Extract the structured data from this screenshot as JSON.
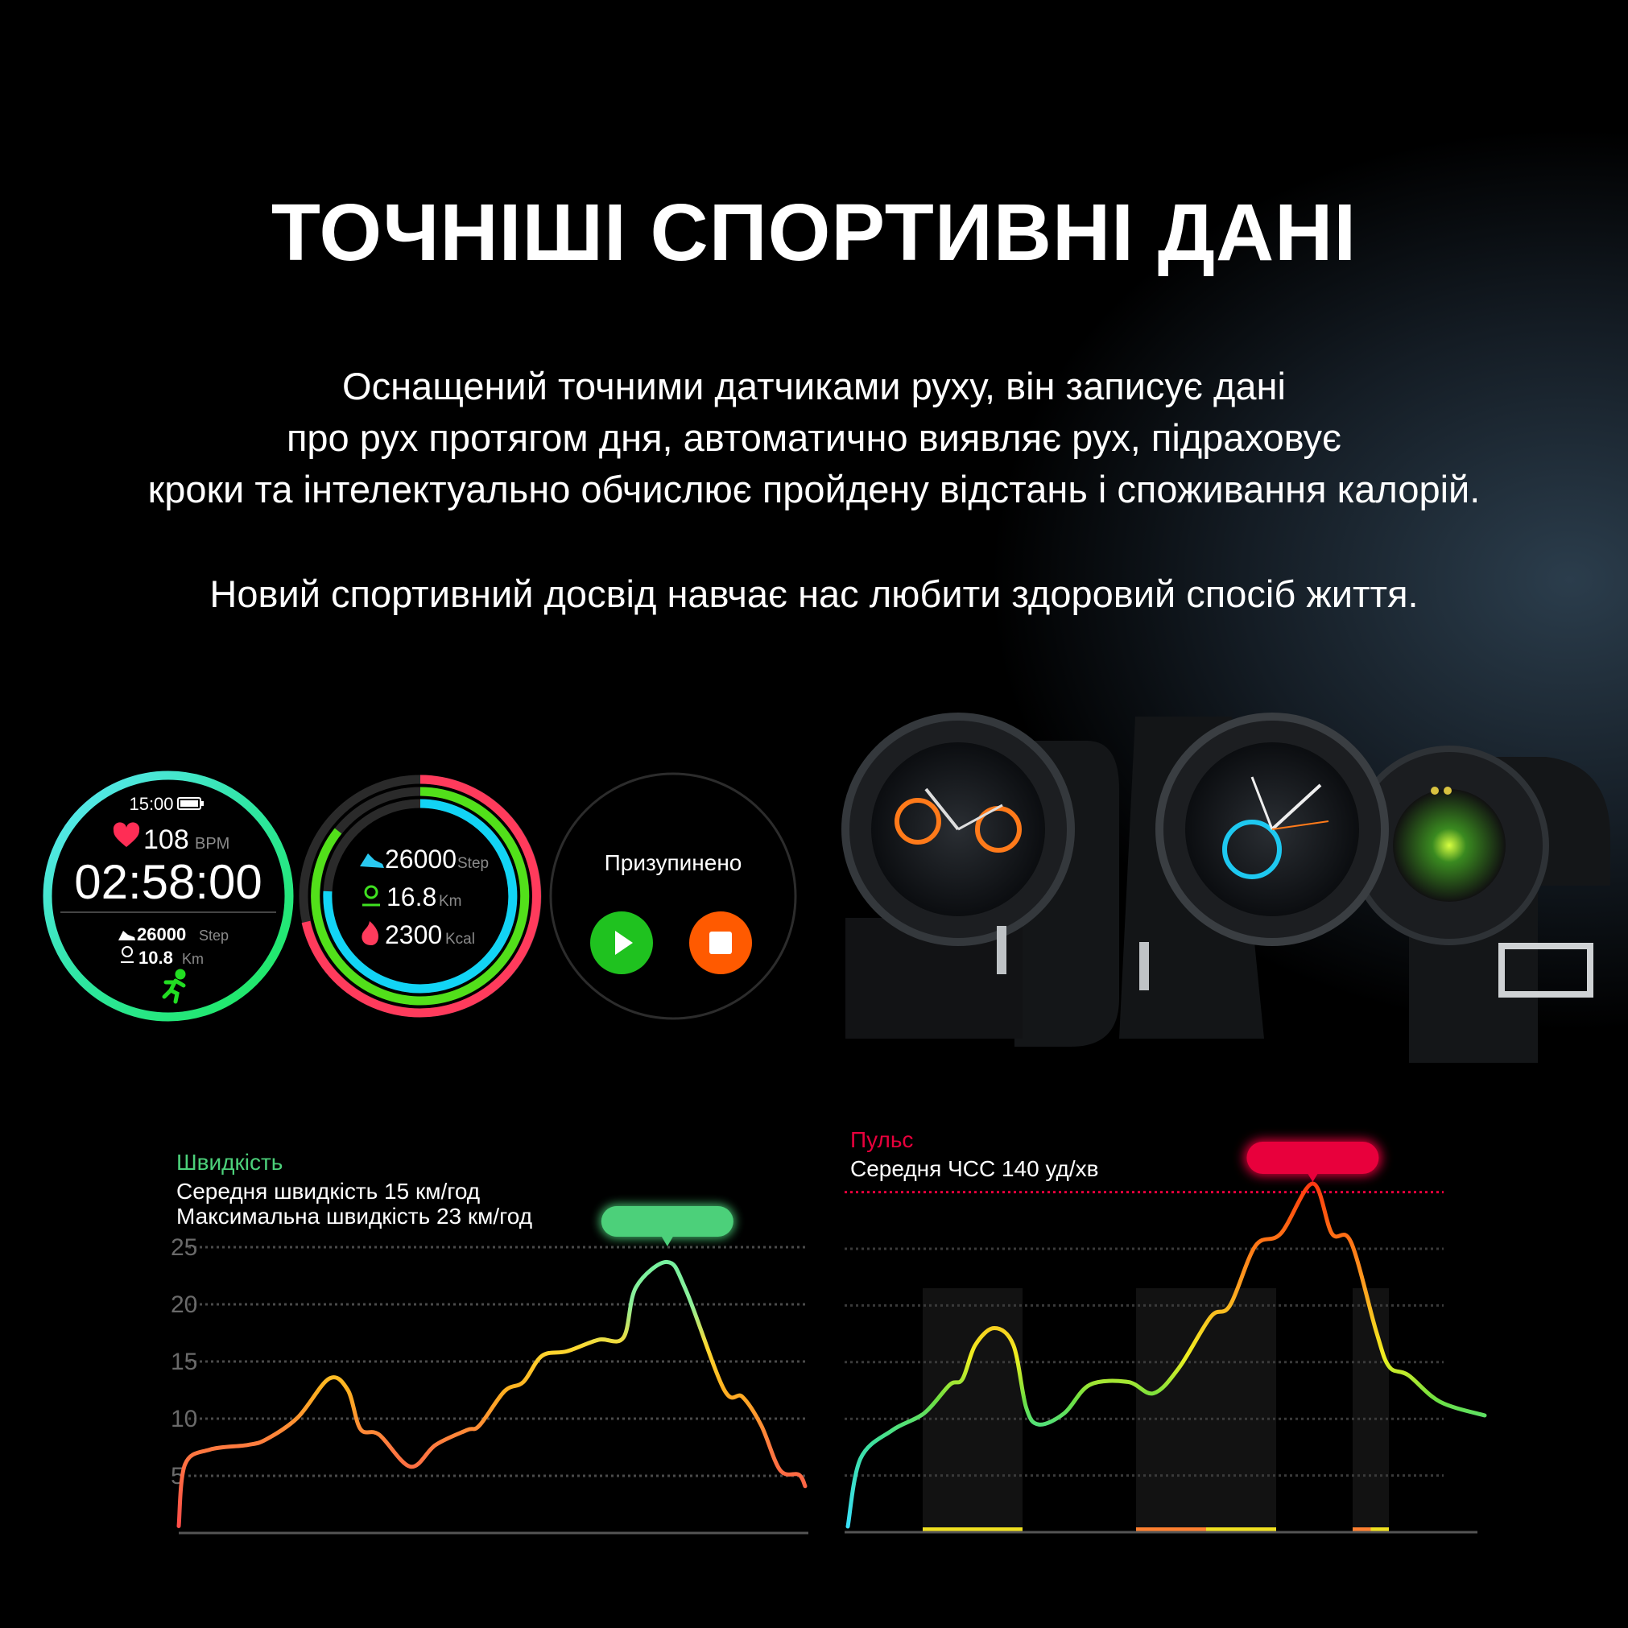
{
  "title": "ТОЧНІШІ СПОРТИВНІ ДАНІ",
  "description": [
    "Оснащений точними датчиками руху, він записує дані",
    "про рух протягом дня, автоматично виявляє рух, підраховує",
    "кроки та інтелектуально обчислює пройдену відстань і споживання калорій."
  ],
  "tagline": "Новий спортивний досвід навчає  нас любити здоровий спосіб життя.",
  "watch_faces": {
    "workout": {
      "clock": "15:00",
      "heart_rate": "108",
      "heart_unit": "BPM",
      "duration": "02:58:00",
      "steps": "26000",
      "steps_unit": "Step",
      "distance": "10.8",
      "distance_unit": "Km",
      "icons": [
        "battery-icon",
        "heart-icon",
        "shoe-icon",
        "location-pin-icon",
        "runner-icon"
      ]
    },
    "activity_rings": {
      "steps": "26000",
      "steps_unit": "Step",
      "distance": "16.8",
      "distance_unit": "Km",
      "calories": "2300",
      "calories_unit": "Kcal",
      "icons": [
        "shoe-icon",
        "location-pin-icon",
        "flame-icon"
      ]
    },
    "paused": {
      "status": "Призупинено",
      "buttons": [
        "play-icon",
        "stop-icon"
      ]
    }
  },
  "colors": {
    "speed": "#4cd07a",
    "pulse": "#e8003c",
    "play": "#1fc21f",
    "stop": "#ff5a00"
  },
  "chart_data": [
    {
      "type": "line",
      "title": "Швидкість",
      "subtitle": [
        "Середня швидкість 15 км/год",
        "Максимальна швидкість 23 км/год"
      ],
      "yticks": [
        "5",
        "10",
        "15",
        "20",
        "25"
      ],
      "ylim": [
        0,
        25
      ],
      "grid": true,
      "peak_marker": true,
      "x": [
        0,
        1,
        5,
        11,
        14,
        19,
        24,
        27,
        29,
        32,
        37,
        41,
        46,
        48,
        52,
        55,
        58,
        62,
        67,
        71,
        73,
        78,
        81,
        87,
        90,
        93,
        96,
        99,
        100
      ],
      "values": [
        0.6,
        6,
        7.3,
        7.7,
        8.2,
        10.1,
        13.5,
        12.5,
        9.1,
        8.6,
        5.8,
        7.7,
        9,
        9.4,
        12.4,
        13.2,
        15.5,
        15.9,
        16.9,
        17.1,
        21.5,
        23.7,
        21.2,
        12.6,
        11.9,
        9.4,
        5.5,
        5.1,
        4.1
      ]
    },
    {
      "type": "line",
      "title": "Пульс",
      "subtitle": [
        "Середня ЧСС 140 уд/хв"
      ],
      "ylim": [
        0,
        6.5
      ],
      "grid": true,
      "max_line": 6,
      "peak_marker": true,
      "x": [
        0,
        2,
        7,
        12,
        16,
        18,
        20,
        23,
        26,
        28,
        30,
        34,
        38,
        44,
        48,
        52,
        57,
        60,
        64,
        68,
        73,
        76,
        79,
        83,
        85,
        88,
        93,
        100
      ],
      "values": [
        0.1,
        1.3,
        1.8,
        2.1,
        2.6,
        2.7,
        3.3,
        3.6,
        3.3,
        2.2,
        1.9,
        2.1,
        2.6,
        2.65,
        2.45,
        2.9,
        3.8,
        4.0,
        5.05,
        5.27,
        6.15,
        5.27,
        5.12,
        3.53,
        2.92,
        2.77,
        2.3,
        2.06
      ]
    }
  ]
}
